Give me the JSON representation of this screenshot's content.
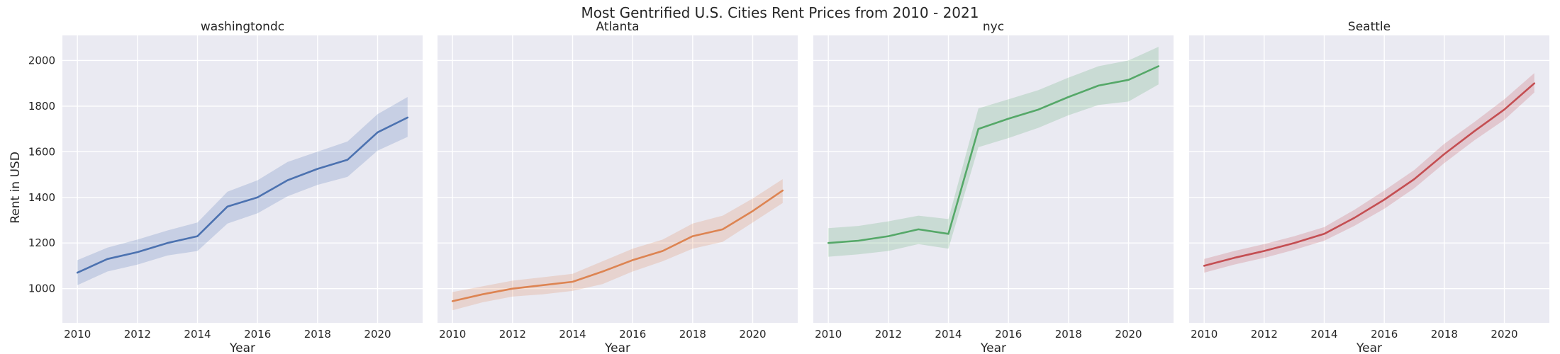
{
  "chart_data": {
    "type": "line",
    "title": "Most Gentrified U.S. Cities Rent Prices from 2010 - 2021",
    "xlabel": "Year",
    "ylabel": "Rent in USD",
    "xlim": [
      2009.5,
      2021.5
    ],
    "ylim": [
      850,
      2110
    ],
    "xticks": [
      2010,
      2012,
      2014,
      2016,
      2018,
      2020
    ],
    "yticks": [
      1000,
      1200,
      1400,
      1600,
      1800,
      2000
    ],
    "grid": true,
    "shared_y": true,
    "x": [
      2010,
      2011,
      2012,
      2013,
      2014,
      2015,
      2016,
      2017,
      2018,
      2019,
      2020,
      2021
    ],
    "panels": [
      {
        "title": "washingtondc",
        "color": "#4c72b0",
        "values": [
          1070,
          1130,
          1160,
          1200,
          1230,
          1360,
          1400,
          1475,
          1525,
          1565,
          1685,
          1750
        ],
        "lower": [
          1015,
          1075,
          1105,
          1145,
          1165,
          1285,
          1330,
          1405,
          1455,
          1490,
          1605,
          1665
        ],
        "upper": [
          1125,
          1180,
          1215,
          1255,
          1290,
          1425,
          1475,
          1555,
          1600,
          1645,
          1765,
          1840
        ]
      },
      {
        "title": "Atlanta",
        "color": "#dd8452",
        "values": [
          945,
          975,
          1000,
          1015,
          1030,
          1075,
          1125,
          1165,
          1230,
          1260,
          1340,
          1430
        ],
        "lower": [
          905,
          940,
          965,
          975,
          990,
          1020,
          1075,
          1120,
          1175,
          1205,
          1290,
          1375
        ],
        "upper": [
          985,
          1010,
          1035,
          1050,
          1065,
          1120,
          1175,
          1215,
          1285,
          1320,
          1395,
          1480
        ]
      },
      {
        "title": "nyc",
        "color": "#55a868",
        "values": [
          1200,
          1210,
          1230,
          1260,
          1240,
          1700,
          1745,
          1785,
          1840,
          1890,
          1915,
          1975
        ],
        "lower": [
          1140,
          1150,
          1165,
          1195,
          1175,
          1620,
          1660,
          1705,
          1760,
          1805,
          1820,
          1895
        ],
        "upper": [
          1265,
          1275,
          1295,
          1320,
          1305,
          1790,
          1830,
          1870,
          1925,
          1975,
          2000,
          2060
        ]
      },
      {
        "title": "Seattle",
        "color": "#c44e52",
        "values": [
          1100,
          1135,
          1165,
          1200,
          1240,
          1310,
          1390,
          1480,
          1590,
          1690,
          1785,
          1900
        ],
        "lower": [
          1070,
          1105,
          1135,
          1170,
          1210,
          1275,
          1350,
          1440,
          1550,
          1650,
          1740,
          1860
        ],
        "upper": [
          1130,
          1165,
          1195,
          1230,
          1270,
          1345,
          1430,
          1520,
          1635,
          1730,
          1830,
          1945
        ]
      }
    ]
  }
}
